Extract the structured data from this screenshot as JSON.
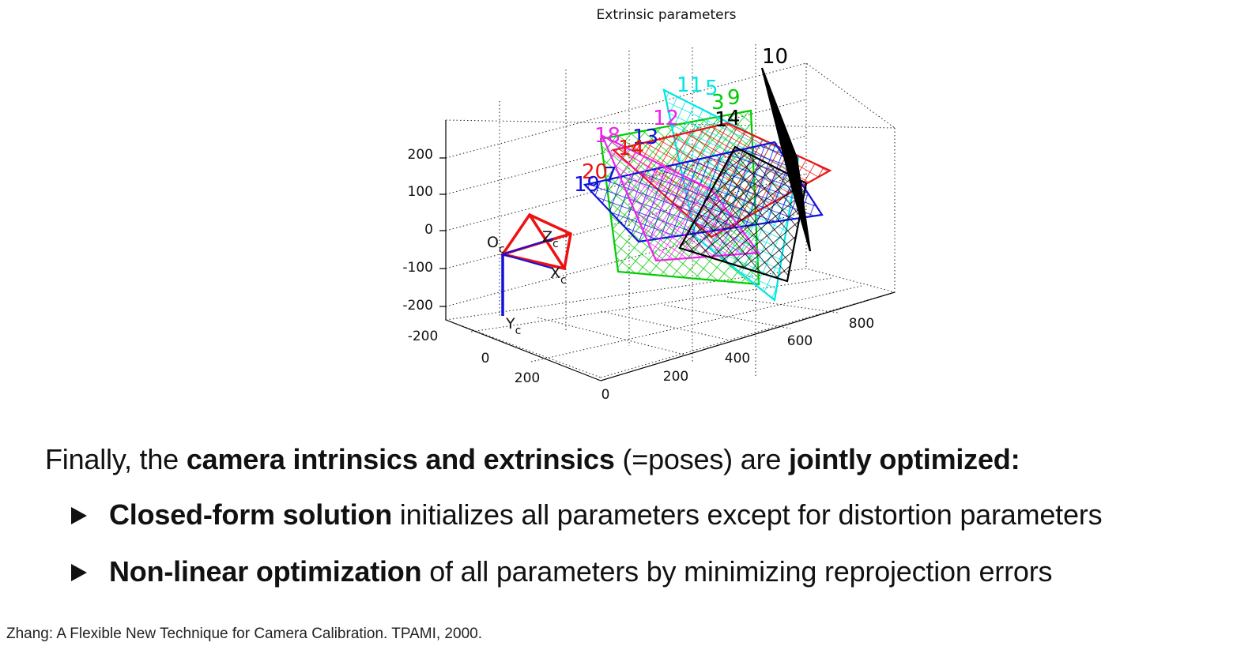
{
  "figure": {
    "title": "Extrinsic parameters",
    "camera_labels": {
      "origin": "O",
      "origin_sub": "c",
      "x": "X",
      "x_sub": "c",
      "y": "Y",
      "y_sub": "c",
      "z": "Z",
      "z_sub": "c"
    },
    "vertical_ticks": [
      "200",
      "100",
      "0",
      "-100",
      "-200"
    ],
    "left_depth_ticks": [
      "-200",
      "0",
      "200"
    ],
    "right_depth_ticks": [
      "0",
      "200",
      "400",
      "600",
      "800"
    ],
    "pattern_labels": [
      {
        "text": "10",
        "color": "#000000"
      },
      {
        "text": "11",
        "color": "#00e5e5"
      },
      {
        "text": "5",
        "color": "#00e5e5"
      },
      {
        "text": "3",
        "color": "#00cc00"
      },
      {
        "text": "9",
        "color": "#00cc00"
      },
      {
        "text": "12",
        "color": "#ee22ee"
      },
      {
        "text": "1",
        "color": "#000000"
      },
      {
        "text": "4",
        "color": "#000000"
      },
      {
        "text": "18",
        "color": "#ee22ee"
      },
      {
        "text": "13",
        "color": "#1111dd"
      },
      {
        "text": "14",
        "color": "#ee1111"
      },
      {
        "text": "20",
        "color": "#ee1111"
      },
      {
        "text": "7",
        "color": "#1111dd"
      },
      {
        "text": "19",
        "color": "#1111dd"
      }
    ]
  },
  "slide": {
    "lead_prefix": "Finally, the ",
    "lead_bold1": "camera intrinsics and extrinsics",
    "lead_mid": " (=poses) are ",
    "lead_bold2": "jointly optimized:",
    "bullets": [
      {
        "bold": "Closed-form solution",
        "rest": " initializes all parameters except for distortion parameters"
      },
      {
        "bold": "Non-linear optimization",
        "rest": " of all parameters by minimizing reprojection errors"
      }
    ],
    "citation": "Zhang: A Flexible New Technique for Camera Calibration. TPAMI, 2000."
  },
  "colors": {
    "red": "#ee1111",
    "blue": "#1111dd",
    "green": "#00cc00",
    "magenta": "#ee22ee",
    "cyan": "#00e5e5",
    "black": "#000000"
  }
}
